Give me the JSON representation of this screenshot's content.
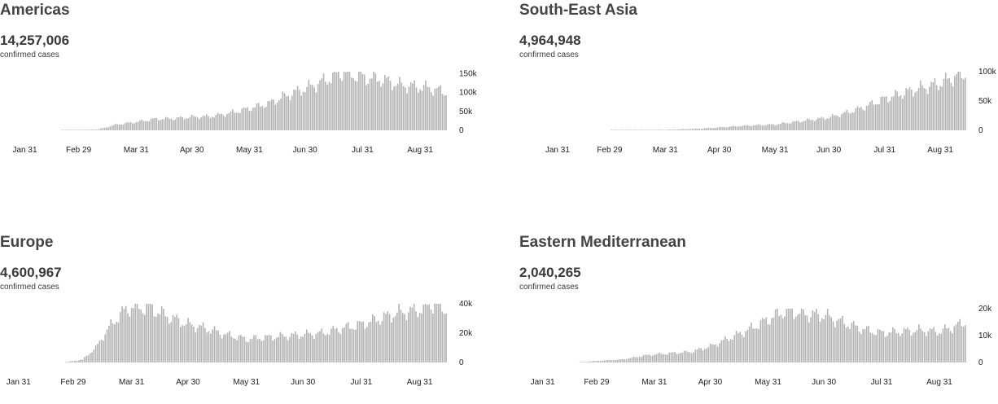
{
  "chart_data": [
    {
      "type": "bar",
      "title": "Americas",
      "total": "14,257,006",
      "caption": "confirmed cases",
      "x_ticks": [
        "Jan 31",
        "Feb 29",
        "Mar 31",
        "Apr 30",
        "May 31",
        "Jun 30",
        "Jul 31",
        "Aug 31"
      ],
      "y_ticks": [
        "0",
        "50k",
        "100k",
        "150k"
      ],
      "y_tick_values": [
        0,
        50000,
        100000,
        150000
      ],
      "ylim": [
        0,
        155000
      ],
      "x_range": [
        "2020-01-22",
        "2020-09-14"
      ],
      "bar_color": "#b3b3b3",
      "series": [
        {
          "date": "2020-02-20",
          "value": 200
        },
        {
          "date": "2020-03-10",
          "value": 2000
        },
        {
          "date": "2020-03-15",
          "value": 8000
        },
        {
          "date": "2020-03-20",
          "value": 15000
        },
        {
          "date": "2020-03-31",
          "value": 22000
        },
        {
          "date": "2020-04-10",
          "value": 30000
        },
        {
          "date": "2020-04-20",
          "value": 31000
        },
        {
          "date": "2020-04-30",
          "value": 35000
        },
        {
          "date": "2020-05-10",
          "value": 37000
        },
        {
          "date": "2020-05-20",
          "value": 45000
        },
        {
          "date": "2020-05-31",
          "value": 58000
        },
        {
          "date": "2020-06-10",
          "value": 70000
        },
        {
          "date": "2020-06-20",
          "value": 92000
        },
        {
          "date": "2020-06-30",
          "value": 110000
        },
        {
          "date": "2020-07-10",
          "value": 130000
        },
        {
          "date": "2020-07-20",
          "value": 155000
        },
        {
          "date": "2020-07-31",
          "value": 140000
        },
        {
          "date": "2020-08-10",
          "value": 135000
        },
        {
          "date": "2020-08-20",
          "value": 120000
        },
        {
          "date": "2020-08-31",
          "value": 115000
        },
        {
          "date": "2020-09-07",
          "value": 110000
        },
        {
          "date": "2020-09-14",
          "value": 100000
        }
      ]
    },
    {
      "type": "bar",
      "title": "South-East Asia",
      "total": "4,964,948",
      "caption": "confirmed cases",
      "x_ticks": [
        "Jan 31",
        "Feb 29",
        "Mar 31",
        "Apr 30",
        "May 31",
        "Jun 30",
        "Jul 31",
        "Aug 31"
      ],
      "y_ticks": [
        "0",
        "50k",
        "100k"
      ],
      "y_tick_values": [
        0,
        50000,
        100000
      ],
      "ylim": [
        0,
        100000
      ],
      "x_range": [
        "2020-01-22",
        "2020-09-14"
      ],
      "bar_color": "#b3b3b3",
      "series": [
        {
          "date": "2020-03-01",
          "value": 100
        },
        {
          "date": "2020-03-31",
          "value": 1000
        },
        {
          "date": "2020-04-20",
          "value": 3000
        },
        {
          "date": "2020-04-30",
          "value": 5000
        },
        {
          "date": "2020-05-15",
          "value": 8000
        },
        {
          "date": "2020-05-31",
          "value": 10000
        },
        {
          "date": "2020-06-15",
          "value": 16000
        },
        {
          "date": "2020-06-30",
          "value": 22000
        },
        {
          "date": "2020-07-10",
          "value": 30000
        },
        {
          "date": "2020-07-20",
          "value": 40000
        },
        {
          "date": "2020-07-31",
          "value": 54000
        },
        {
          "date": "2020-08-10",
          "value": 63000
        },
        {
          "date": "2020-08-20",
          "value": 72000
        },
        {
          "date": "2020-08-31",
          "value": 80000
        },
        {
          "date": "2020-09-07",
          "value": 90000
        },
        {
          "date": "2020-09-14",
          "value": 97000
        }
      ]
    },
    {
      "type": "bar",
      "title": "Europe",
      "total": "4,600,967",
      "caption": "confirmed cases",
      "x_ticks": [
        "Jan 31",
        "Feb 29",
        "Mar 31",
        "Apr 30",
        "May 31",
        "Jun 30",
        "Jul 31",
        "Aug 31"
      ],
      "y_ticks": [
        "0",
        "20k",
        "40k"
      ],
      "y_tick_values": [
        0,
        20000,
        40000
      ],
      "ylim": [
        0,
        40000
      ],
      "x_range": [
        "2020-01-22",
        "2020-09-14"
      ],
      "bar_color": "#b3b3b3",
      "series": [
        {
          "date": "2020-02-25",
          "value": 200
        },
        {
          "date": "2020-03-05",
          "value": 2000
        },
        {
          "date": "2020-03-12",
          "value": 10000
        },
        {
          "date": "2020-03-18",
          "value": 22000
        },
        {
          "date": "2020-03-25",
          "value": 33000
        },
        {
          "date": "2020-03-31",
          "value": 38000
        },
        {
          "date": "2020-04-10",
          "value": 37000
        },
        {
          "date": "2020-04-20",
          "value": 31000
        },
        {
          "date": "2020-04-30",
          "value": 26000
        },
        {
          "date": "2020-05-10",
          "value": 23000
        },
        {
          "date": "2020-05-20",
          "value": 19000
        },
        {
          "date": "2020-05-31",
          "value": 16000
        },
        {
          "date": "2020-06-10",
          "value": 17000
        },
        {
          "date": "2020-06-20",
          "value": 18000
        },
        {
          "date": "2020-06-30",
          "value": 19000
        },
        {
          "date": "2020-07-10",
          "value": 20000
        },
        {
          "date": "2020-07-20",
          "value": 23000
        },
        {
          "date": "2020-07-31",
          "value": 26000
        },
        {
          "date": "2020-08-10",
          "value": 30000
        },
        {
          "date": "2020-08-20",
          "value": 34000
        },
        {
          "date": "2020-08-31",
          "value": 36000
        },
        {
          "date": "2020-09-07",
          "value": 40000
        },
        {
          "date": "2020-09-14",
          "value": 36000
        }
      ]
    },
    {
      "type": "bar",
      "title": "Eastern Mediterranean",
      "total": "2,040,265",
      "caption": "confirmed cases",
      "x_ticks": [
        "Jan 31",
        "Feb 29",
        "Mar 31",
        "Apr 30",
        "May 31",
        "Jun 30",
        "Jul 31",
        "Aug 31"
      ],
      "y_ticks": [
        "0",
        "10k",
        "20k"
      ],
      "y_tick_values": [
        0,
        10000,
        20000
      ],
      "ylim": [
        0,
        20000
      ],
      "x_range": [
        "2020-01-22",
        "2020-09-14"
      ],
      "bar_color": "#b3b3b3",
      "series": [
        {
          "date": "2020-02-20",
          "value": 100
        },
        {
          "date": "2020-03-01",
          "value": 600
        },
        {
          "date": "2020-03-15",
          "value": 1200
        },
        {
          "date": "2020-03-25",
          "value": 2500
        },
        {
          "date": "2020-03-31",
          "value": 3000
        },
        {
          "date": "2020-04-10",
          "value": 3500
        },
        {
          "date": "2020-04-20",
          "value": 4000
        },
        {
          "date": "2020-04-30",
          "value": 6000
        },
        {
          "date": "2020-05-10",
          "value": 9000
        },
        {
          "date": "2020-05-20",
          "value": 12000
        },
        {
          "date": "2020-05-31",
          "value": 16000
        },
        {
          "date": "2020-06-10",
          "value": 19500
        },
        {
          "date": "2020-06-20",
          "value": 18000
        },
        {
          "date": "2020-06-30",
          "value": 17500
        },
        {
          "date": "2020-07-10",
          "value": 15000
        },
        {
          "date": "2020-07-20",
          "value": 12500
        },
        {
          "date": "2020-07-31",
          "value": 11000
        },
        {
          "date": "2020-08-10",
          "value": 11500
        },
        {
          "date": "2020-08-20",
          "value": 12000
        },
        {
          "date": "2020-08-31",
          "value": 11500
        },
        {
          "date": "2020-09-07",
          "value": 13000
        },
        {
          "date": "2020-09-14",
          "value": 15000
        }
      ]
    }
  ]
}
